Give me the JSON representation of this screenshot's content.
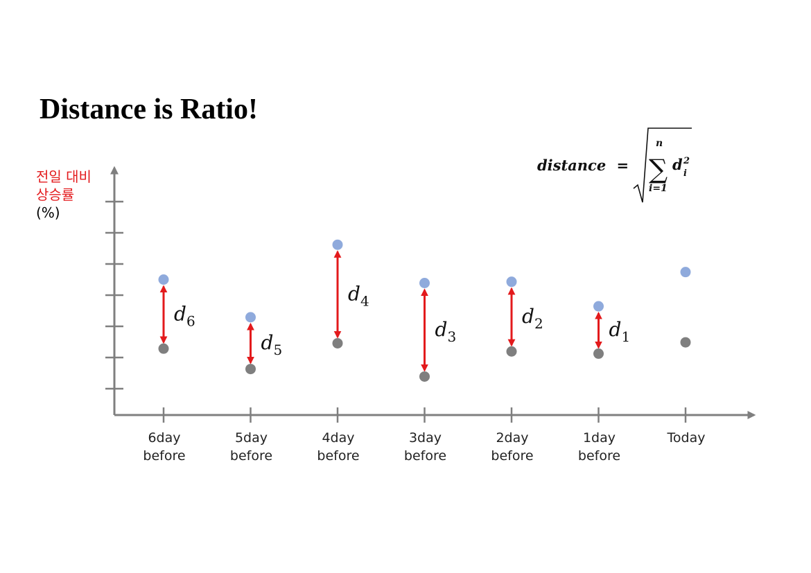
{
  "title": "Distance is Ratio!",
  "y_axis": {
    "label_line1": "전일 대비",
    "label_line2": "상승률",
    "unit": "(%)"
  },
  "formula": {
    "lhs": "distance",
    "eq": "=",
    "sum_upper": "n",
    "sum_lower": "i=1",
    "term": "d",
    "term_sub": "i",
    "term_sup": "2"
  },
  "colors": {
    "upper_point": "#8faadc",
    "lower_point": "#7f7f7f",
    "arrow": "#e31a1c",
    "axis": "#7f7f7f"
  },
  "columns": [
    {
      "line1": "6day",
      "line2": "before",
      "d_base": "d",
      "d_sub": "6",
      "upper": 4.47,
      "lower": 2.27,
      "has_arrow": true
    },
    {
      "line1": "5day",
      "line2": "before",
      "d_base": "d",
      "d_sub": "5",
      "upper": 3.27,
      "lower": 1.62,
      "has_arrow": true
    },
    {
      "line1": "4day",
      "line2": "before",
      "d_base": "d",
      "d_sub": "4",
      "upper": 5.58,
      "lower": 2.44,
      "has_arrow": true
    },
    {
      "line1": "3day",
      "line2": "before",
      "d_base": "d",
      "d_sub": "3",
      "upper": 4.36,
      "lower": 1.38,
      "has_arrow": true
    },
    {
      "line1": "2day",
      "line2": "before",
      "d_base": "d",
      "d_sub": "2",
      "upper": 4.4,
      "lower": 2.18,
      "has_arrow": true
    },
    {
      "line1": "1day",
      "line2": "before",
      "d_base": "d",
      "d_sub": "1",
      "upper": 3.62,
      "lower": 2.11,
      "has_arrow": true
    },
    {
      "line1": "Today",
      "line2": "",
      "d_base": "",
      "d_sub": "",
      "upper": 4.71,
      "lower": 2.47,
      "has_arrow": false
    }
  ]
}
